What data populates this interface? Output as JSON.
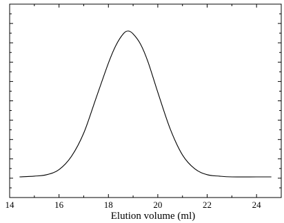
{
  "chart_data": {
    "type": "line",
    "xlabel": "Elution volume (ml)",
    "ylabel": "",
    "xlim": [
      14,
      25
    ],
    "ylim": [
      0,
      1.08
    ],
    "x_ticks": [
      14,
      16,
      18,
      20,
      22,
      24
    ],
    "y_tick_labels_shown": false,
    "series": [
      {
        "x": [
          14.4,
          15.0,
          15.5,
          16.0,
          16.5,
          17.0,
          17.5,
          18.0,
          18.3,
          18.6,
          18.8,
          19.0,
          19.3,
          19.6,
          20.0,
          20.5,
          21.0,
          21.5,
          22.0,
          22.5,
          23.0,
          24.0,
          24.6
        ],
        "y": [
          0.0,
          0.005,
          0.015,
          0.05,
          0.14,
          0.3,
          0.54,
          0.78,
          0.9,
          0.98,
          1.0,
          0.98,
          0.91,
          0.79,
          0.58,
          0.33,
          0.15,
          0.055,
          0.015,
          0.005,
          0.0,
          0.0,
          0.0
        ]
      }
    ]
  }
}
